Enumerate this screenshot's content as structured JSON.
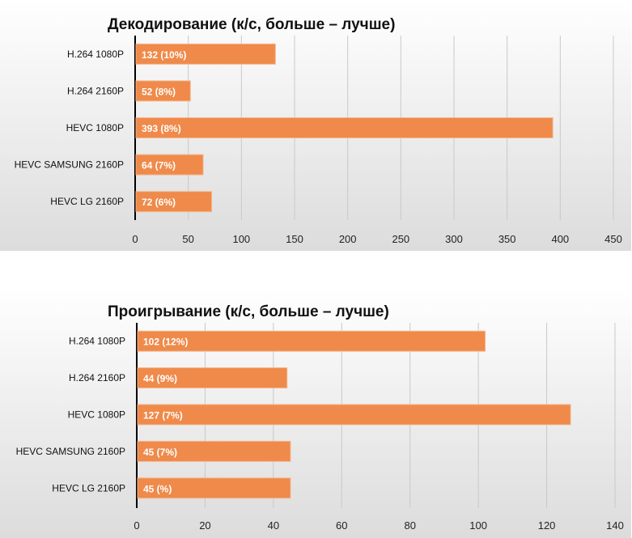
{
  "colors": {
    "bar": "#ef8a4a",
    "bar_edge": "#f4b88f",
    "panel_bg_light": "#ffffff",
    "panel_bg_dark": "#dcdcdc"
  },
  "chart_data": [
    {
      "type": "bar",
      "orientation": "horizontal",
      "title": "Декодирование (к/с, больше – лучше)",
      "categories": [
        "H.264 1080P",
        "H.264 2160P",
        "HEVC 1080P",
        "HEVC SAMSUNG 2160P",
        "HEVC LG 2160P"
      ],
      "values": [
        132,
        52,
        393,
        64,
        72
      ],
      "data_labels": [
        "132  (10%)",
        "52  (8%)",
        "393  (8%)",
        "64  (7%)",
        "72  (6%)"
      ],
      "xlim": [
        0,
        450
      ],
      "xticks": [
        "0",
        "50",
        "100",
        "150",
        "200",
        "250",
        "300",
        "350",
        "400",
        "450"
      ],
      "grid": true
    },
    {
      "type": "bar",
      "orientation": "horizontal",
      "title": "Проигрывание (к/с, больше – лучше)",
      "categories": [
        "H.264 1080P",
        "H.264 2160P",
        "HEVC 1080P",
        "HEVC SAMSUNG 2160P",
        "HEVC LG 2160P"
      ],
      "values": [
        102,
        44,
        127,
        45,
        45
      ],
      "data_labels": [
        "102  (12%)",
        "44  (9%)",
        "127  (7%)",
        "45  (7%)",
        "45  (%)"
      ],
      "xlim": [
        0,
        140
      ],
      "xticks": [
        "0",
        "20",
        "40",
        "60",
        "80",
        "100",
        "120",
        "140"
      ],
      "grid": true
    }
  ]
}
